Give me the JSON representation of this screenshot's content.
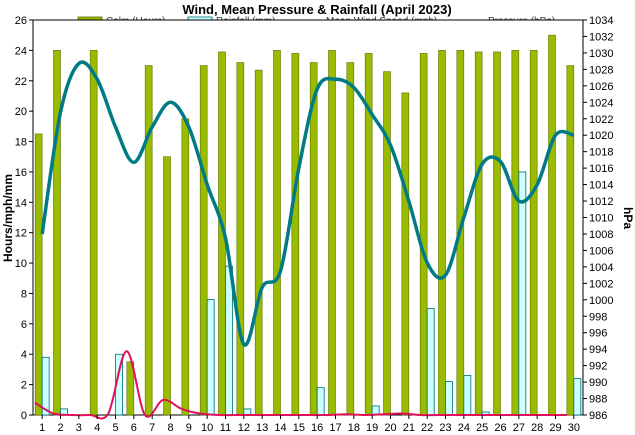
{
  "chart_data": {
    "type": "bar",
    "title": "Wind, Mean Pressure & Rainfall (April 2023)",
    "xlabel": "",
    "ylabel": "Hours/mph/mm",
    "y2label": "hPa",
    "categories": [
      "1",
      "2",
      "3",
      "4",
      "5",
      "6",
      "7",
      "8",
      "9",
      "10",
      "11",
      "12",
      "13",
      "14",
      "15",
      "16",
      "17",
      "18",
      "19",
      "20",
      "21",
      "22",
      "23",
      "24",
      "25",
      "26",
      "27",
      "28",
      "29",
      "30"
    ],
    "ylim": [
      0,
      26
    ],
    "yticks": [
      "0",
      "2",
      "4",
      "6",
      "8",
      "10",
      "12",
      "14",
      "16",
      "18",
      "20",
      "22",
      "24",
      "26"
    ],
    "y2lim": [
      986,
      1034
    ],
    "y2ticks": [
      "986",
      "988",
      "990",
      "992",
      "994",
      "996",
      "998",
      "1000",
      "1002",
      "1004",
      "1006",
      "1008",
      "1010",
      "1012",
      "1014",
      "1016",
      "1018",
      "1020",
      "1022",
      "1024",
      "1026",
      "1028",
      "1030",
      "1032",
      "1034"
    ],
    "grid": false,
    "legend_position": "top",
    "series": [
      {
        "name": "Calm (Hours)",
        "kind": "bar",
        "axis": "left",
        "color": "#99bb00",
        "edge": "#5a7000",
        "values": [
          18.5,
          24.0,
          0.0,
          24.0,
          0.0,
          3.5,
          23.0,
          17.0,
          19.5,
          23.0,
          23.9,
          23.2,
          22.7,
          24.0,
          23.8,
          23.2,
          24.0,
          23.2,
          23.8,
          22.6,
          21.2,
          23.8,
          24.0,
          24.0,
          23.9,
          23.9,
          24.0,
          24.0,
          25.0,
          23.0
        ]
      },
      {
        "name": "Rainfall (mm)",
        "kind": "bar",
        "axis": "left",
        "color": "#ccffff",
        "edge": "#006b6b",
        "values": [
          3.8,
          0.4,
          0.0,
          0.0,
          4.0,
          0.0,
          0.0,
          0.0,
          0.0,
          7.6,
          9.8,
          0.4,
          0.0,
          0.0,
          0.0,
          1.8,
          0.0,
          0.0,
          0.6,
          0.0,
          0.0,
          7.0,
          2.2,
          2.6,
          0.2,
          0.0,
          16.0,
          0.0,
          0.0,
          2.4
        ]
      },
      {
        "name": "Mean Wind Speed (mph)",
        "kind": "line",
        "axis": "left",
        "color": "#e0105a",
        "values": [
          0.8,
          0.1,
          0.0,
          0.0,
          0.1,
          4.2,
          0.0,
          1.0,
          0.4,
          0.1,
          0.0,
          0.0,
          0.0,
          0.0,
          0.0,
          0.0,
          0.0,
          0.05,
          0.0,
          0.05,
          0.1,
          0.0,
          0.0,
          0.0,
          0.0,
          0.0,
          0.0,
          0.0,
          0.0,
          0.0
        ]
      },
      {
        "name": "Pressure (hPa)",
        "kind": "line",
        "axis": "right",
        "color": "#007b85",
        "values": [
          1008.0,
          1022.8,
          1028.7,
          1026.8,
          1021.0,
          1016.7,
          1021.0,
          1024.0,
          1021.0,
          1014.0,
          1007.5,
          994.6,
          1001.5,
          1003.5,
          1016.0,
          1025.6,
          1026.8,
          1025.8,
          1022.5,
          1018.8,
          1012.0,
          1004.5,
          1003.0,
          1010.0,
          1016.5,
          1016.8,
          1012.0,
          1014.0,
          1020.0,
          1020.0
        ]
      }
    ]
  }
}
